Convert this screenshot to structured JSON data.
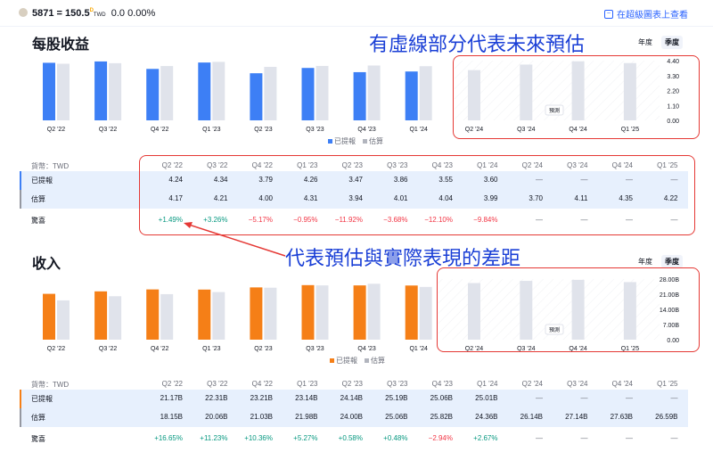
{
  "header": {
    "symbol": "5871",
    "separator": "=",
    "price": "150.5",
    "price_sup": "D",
    "currency": "TWD",
    "change": "0.0",
    "change_pct": "0.00%",
    "link": "在超級圖表上查看",
    "link_icon": "chart-icon"
  },
  "annotations": {
    "top": "有虛線部分代表未來預估",
    "middle": "代表預估與實際表現的差距",
    "color": "#e53935"
  },
  "periods": [
    "Q2 '22",
    "Q3 '22",
    "Q4 '22",
    "Q1 '23",
    "Q2 '23",
    "Q3 '23",
    "Q4 '23",
    "Q1 '24",
    "Q2 '24",
    "Q3 '24",
    "Q4 '24",
    "Q1 '25"
  ],
  "toggle": {
    "annual": "年度",
    "quarterly": "季度",
    "selected": "季度"
  },
  "legend": {
    "reported": "已提報",
    "estimate": "估算"
  },
  "forecast_label": "預測",
  "eps": {
    "title": "每股收益",
    "color": "#3d7ff5",
    "yticks": [
      "4.40",
      "3.30",
      "2.20",
      "1.10",
      "0.00"
    ],
    "ymax": 4.4,
    "currency_label": "貨幣：TWD",
    "row_labels": {
      "reported": "已提報",
      "estimate": "估算",
      "surprise": "驚喜"
    },
    "reported": [
      "4.24",
      "4.34",
      "3.79",
      "4.26",
      "3.47",
      "3.86",
      "3.55",
      "3.60",
      "—",
      "—",
      "—",
      "—"
    ],
    "estimate": [
      "4.17",
      "4.21",
      "4.00",
      "4.31",
      "3.94",
      "4.01",
      "4.04",
      "3.99",
      "3.70",
      "4.11",
      "4.35",
      "4.22"
    ],
    "surprise": [
      "+1.49%",
      "+3.26%",
      "−5.17%",
      "−0.95%",
      "−11.92%",
      "−3.68%",
      "−12.10%",
      "−9.84%",
      "—",
      "—",
      "—",
      "—"
    ]
  },
  "revenue": {
    "title": "收入",
    "color": "#f57f17",
    "yticks": [
      "28.00B",
      "21.00B",
      "14.00B",
      "7.00B",
      "0.00"
    ],
    "ymax": 28,
    "currency_label": "貨幣：TWD",
    "row_labels": {
      "reported": "已提報",
      "estimate": "估算",
      "surprise": "驚喜"
    },
    "reported": [
      "21.17B",
      "22.31B",
      "23.21B",
      "23.14B",
      "24.14B",
      "25.19B",
      "25.06B",
      "25.01B",
      "—",
      "—",
      "—",
      "—"
    ],
    "estimate": [
      "18.15B",
      "20.06B",
      "21.03B",
      "21.98B",
      "24.00B",
      "25.06B",
      "25.82B",
      "24.36B",
      "26.14B",
      "27.14B",
      "27.63B",
      "26.59B"
    ],
    "surprise": [
      "+16.65%",
      "+11.23%",
      "+10.36%",
      "+5.27%",
      "+0.58%",
      "+0.48%",
      "−2.94%",
      "+2.67%",
      "—",
      "—",
      "—",
      "—"
    ]
  },
  "colors": {
    "estimate_bar": "#e0e3eb",
    "positive": "#089981",
    "negative": "#f23645",
    "row_highlight": "#e7f0fd"
  }
}
